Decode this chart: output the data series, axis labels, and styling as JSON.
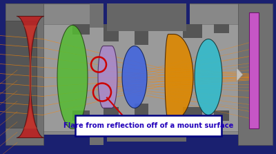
{
  "bg_outer": "#1a2070",
  "bg_gray": "#8a8a8a",
  "bg_dark_gray": "#555560",
  "title": "Flare from reflection off of a mount surface",
  "text_color": "#2200bb",
  "text_box_bg": "#ffffff",
  "text_box_edge": "#000080",
  "ray_color": "#ff8800",
  "circle_color": "#cc0000",
  "arrow_color": "#cc0000",
  "lens1_color_outer": "#bb2222",
  "lens1_color_inner": "#cc4433",
  "lens2_color": "#55bb33",
  "lens3_color": "#aa88cc",
  "lens4_color": "#4466dd",
  "lens5_color": "#dd8800",
  "lens6_color": "#33bbcc",
  "detector_color": "#cc55cc",
  "mount_color": "#555555",
  "inner_tube_color": "#9a9a9a",
  "step_color": "#707070"
}
